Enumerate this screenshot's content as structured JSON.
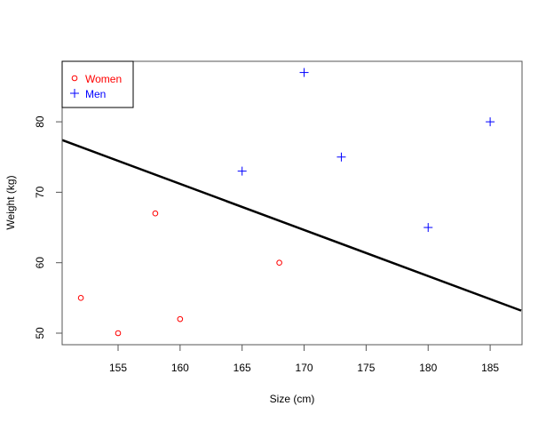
{
  "chart_data": {
    "type": "scatter",
    "title": "",
    "xlabel": "Size (cm)",
    "ylabel": "Weight (kg)",
    "xlim": [
      150.5,
      187.5
    ],
    "ylim": [
      48.4,
      88.6
    ],
    "x_ticks": [
      155,
      160,
      165,
      170,
      175,
      180,
      185
    ],
    "y_ticks": [
      50,
      60,
      70,
      80
    ],
    "grid": false,
    "legend_position": "topleft",
    "series": [
      {
        "name": "Women",
        "color": "#ff0000",
        "marker": "circle",
        "points": [
          [
            152,
            55
          ],
          [
            155,
            50
          ],
          [
            158,
            67
          ],
          [
            160,
            52
          ],
          [
            168,
            60
          ]
        ]
      },
      {
        "name": "Men",
        "color": "#0000ff",
        "marker": "plus",
        "points": [
          [
            165,
            73
          ],
          [
            170,
            87
          ],
          [
            173,
            75
          ],
          [
            180,
            65
          ],
          [
            185,
            80
          ]
        ]
      }
    ],
    "fit_line": {
      "color": "#000000",
      "x": [
        150.5,
        187.5
      ],
      "y": [
        77.4,
        53.2
      ]
    }
  },
  "legend": {
    "items": [
      {
        "label": "Women"
      },
      {
        "label": "Men"
      }
    ]
  },
  "axes": {
    "xlabel": "Size (cm)",
    "ylabel": "Weight (kg)",
    "x_ticks": [
      "155",
      "160",
      "165",
      "170",
      "175",
      "180",
      "185"
    ],
    "y_ticks": [
      "50",
      "60",
      "70",
      "80"
    ]
  }
}
